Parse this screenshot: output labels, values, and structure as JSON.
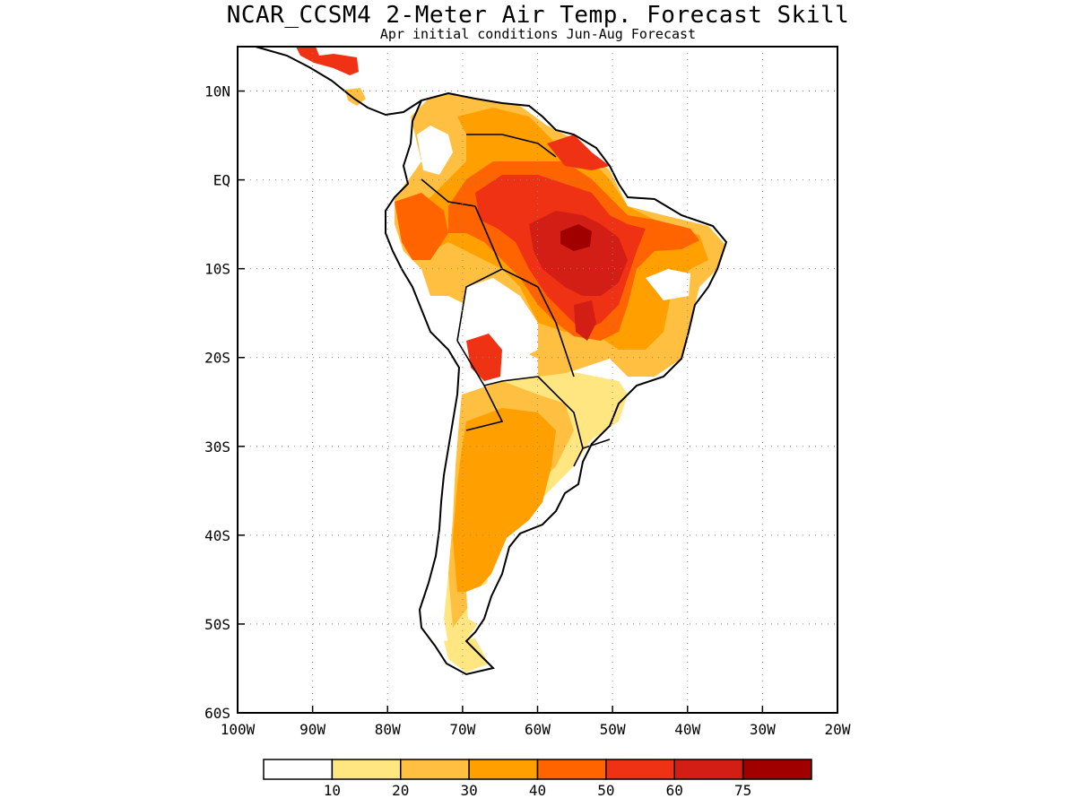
{
  "title": "NCAR_CCSM4 2-Meter Air Temp. Forecast Skill",
  "subtitle": "Apr initial conditions  Jun-Aug Forecast",
  "map": {
    "lon_range": [
      -100,
      -20
    ],
    "lat_range": [
      -60,
      15
    ],
    "lon_ticks": [
      "100W",
      "90W",
      "80W",
      "70W",
      "60W",
      "50W",
      "40W",
      "30W",
      "20W"
    ],
    "lat_ticks": [
      "10N",
      "EQ",
      "10S",
      "20S",
      "30S",
      "40S",
      "50S",
      "60S"
    ],
    "grid": "dotted"
  },
  "colorbar": {
    "labels": [
      "10",
      "20",
      "30",
      "40",
      "50",
      "60",
      "75"
    ],
    "colors": [
      "#ffffff",
      "#ffe680",
      "#ffbf40",
      "#ffa000",
      "#ff6400",
      "#f03214",
      "#d21e14",
      "#a00000"
    ]
  }
}
